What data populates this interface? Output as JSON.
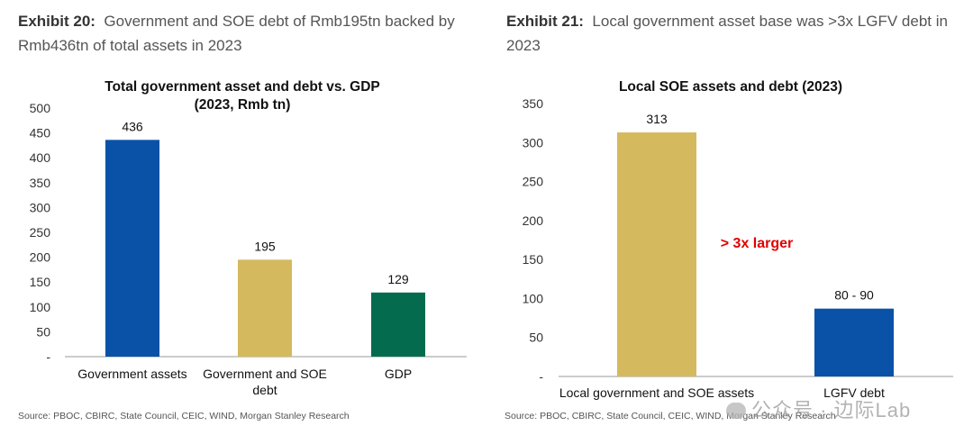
{
  "exhibits": {
    "left": {
      "number": "Exhibit 20:",
      "caption": "Government and SOE debt of Rmb195tn backed by Rmb436tn of total assets in 2023",
      "source": "Source: PBOC, CBIRC, State Council, CEIC, WIND, Morgan Stanley Research"
    },
    "right": {
      "number": "Exhibit 21:",
      "caption": "Local government asset base was >3x LGFV debt in 2023",
      "source": "Source: PBOC, CBIRC, State Council, CEIC, WIND, Morgan Stanley Research"
    }
  },
  "watermark": "公众号 · 边际Lab",
  "chart_data": [
    {
      "type": "bar",
      "title": "Total government asset and debt vs. GDP",
      "subtitle": "(2023, Rmb tn)",
      "categories": [
        "Government assets",
        "Government and SOE debt",
        "GDP"
      ],
      "values": [
        436,
        195,
        129
      ],
      "value_labels": [
        "436",
        "195",
        "129"
      ],
      "colors": [
        "#0a52a8",
        "#d4b95e",
        "#056b4f"
      ],
      "ylim": [
        0,
        500
      ],
      "yticks": [
        0,
        50,
        100,
        150,
        200,
        250,
        300,
        350,
        400,
        450,
        500
      ],
      "ytick_labels": [
        "-",
        "50",
        "100",
        "150",
        "200",
        "250",
        "300",
        "350",
        "400",
        "450",
        "500"
      ],
      "grid": false
    },
    {
      "type": "bar",
      "title": "Local SOE assets and debt (2023)",
      "categories": [
        "Local government and SOE assets",
        "LGFV debt"
      ],
      "values": [
        313,
        87
      ],
      "value_labels": [
        "313",
        "80 - 90"
      ],
      "colors": [
        "#d4b95e",
        "#0a52a8"
      ],
      "ylim": [
        0,
        350
      ],
      "yticks": [
        0,
        50,
        100,
        150,
        200,
        250,
        300,
        350
      ],
      "ytick_labels": [
        "-",
        "50",
        "100",
        "150",
        "200",
        "250",
        "300",
        "350"
      ],
      "annotation": "> 3x larger",
      "grid": false
    }
  ]
}
